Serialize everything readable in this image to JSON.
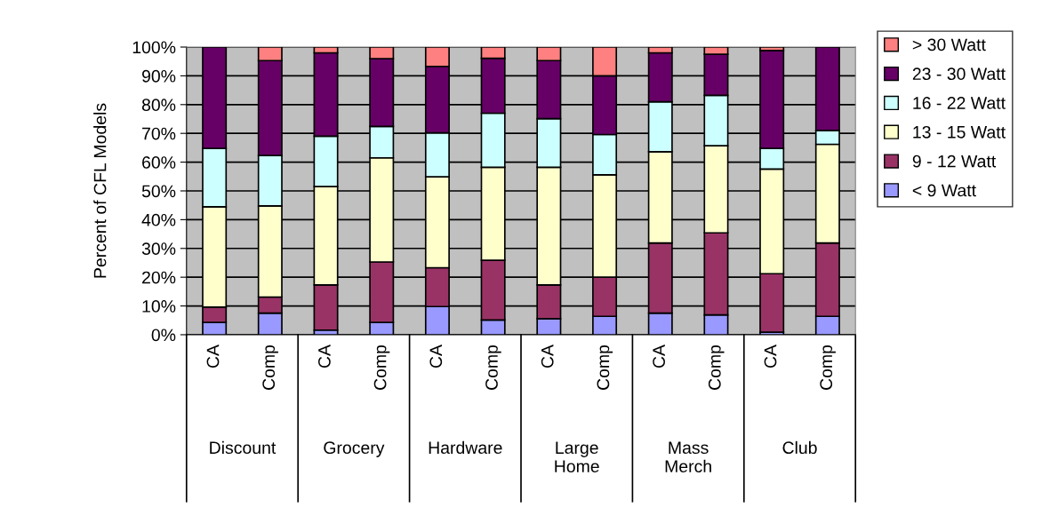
{
  "chart_data": {
    "type": "bar",
    "stacked": true,
    "ylabel": "Percent of CFL Models",
    "categories": [
      "CA",
      "Comp",
      "CA",
      "Comp",
      "CA",
      "Comp",
      "CA",
      "Comp",
      "CA",
      "Comp",
      "CA",
      "Comp"
    ],
    "annotations": [
      "Discount",
      "Grocery",
      "Hardware",
      "Large\nHome",
      "Mass\nMerch",
      "Club"
    ],
    "series": [
      {
        "name": "< 9 Watt",
        "color": "#9999ff",
        "values": [
          4.3,
          7.5,
          1.6,
          4.3,
          9.8,
          5.1,
          5.6,
          6.4,
          7.5,
          6.9,
          0.9,
          6.4
        ]
      },
      {
        "name": "9 - 12 Watt",
        "color": "#993366",
        "values": [
          5.3,
          5.6,
          15.7,
          21.0,
          13.5,
          20.8,
          11.7,
          13.6,
          24.4,
          28.5,
          20.3,
          25.5
        ]
      },
      {
        "name": "13 - 15 Watt",
        "color": "#ffffcc",
        "values": [
          34.9,
          31.7,
          34.2,
          36.2,
          31.6,
          32.3,
          40.9,
          35.6,
          31.7,
          30.3,
          36.4,
          34.3
        ]
      },
      {
        "name": "16 - 22 Watt",
        "color": "#ccffff",
        "values": [
          20.3,
          17.5,
          17.5,
          10.9,
          15.3,
          18.8,
          16.9,
          14.0,
          17.4,
          17.5,
          7.2,
          4.8
        ]
      },
      {
        "name": "23 - 30 Watt",
        "color": "#660066",
        "values": [
          35.2,
          33.0,
          29.0,
          23.6,
          23.1,
          19.1,
          20.2,
          20.4,
          17.0,
          14.3,
          34.0,
          29.0
        ]
      },
      {
        "name": "> 30 Watt",
        "color": "#ff8080",
        "values": [
          null,
          4.7,
          2.0,
          4.0,
          6.7,
          3.9,
          4.7,
          10.0,
          2.0,
          2.5,
          1.2,
          null
        ]
      }
    ],
    "ylim": [
      0,
      100
    ],
    "yticks": [
      {
        "value": 0,
        "label": "0%"
      },
      {
        "value": 10,
        "label": "10%"
      },
      {
        "value": 20,
        "label": "20%"
      },
      {
        "value": 30,
        "label": "30%"
      },
      {
        "value": 40,
        "label": "40%"
      },
      {
        "value": 50,
        "label": "50%"
      },
      {
        "value": 60,
        "label": "60%"
      },
      {
        "value": 70,
        "label": "70%"
      },
      {
        "value": 80,
        "label": "80%"
      },
      {
        "value": 90,
        "label": "90%"
      },
      {
        "value": 100,
        "label": "100%"
      }
    ],
    "grid": "y",
    "legend": "right"
  }
}
